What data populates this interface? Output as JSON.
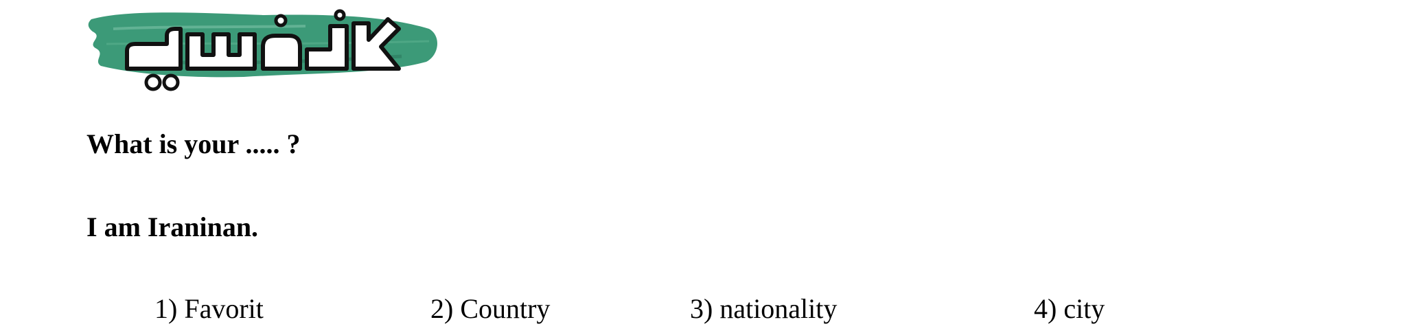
{
  "logo": {
    "icon": "brand-logo-icon",
    "text": "گچ سفید",
    "colors": {
      "brush": "#3c9a78",
      "lettering": "#ffffff",
      "outline": "#111111"
    }
  },
  "question": "What is your ..... ?",
  "answer": "I am Iraninan.",
  "options": [
    "1) Favorit",
    "2) Country",
    "3) nationality",
    "4) city"
  ]
}
